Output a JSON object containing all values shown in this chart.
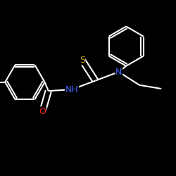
{
  "background_color": "#000000",
  "bond_color": "#ffffff",
  "atom_colors": {
    "S": "#ccaa00",
    "N": "#4466ff",
    "O": "#ff2222",
    "C": "#ffffff",
    "H": "#ffffff"
  },
  "bond_width": 1.5,
  "figsize": [
    2.5,
    2.5
  ],
  "dpi": 100,
  "xlim": [
    -1.2,
    1.2
  ],
  "ylim": [
    -1.2,
    1.2
  ]
}
